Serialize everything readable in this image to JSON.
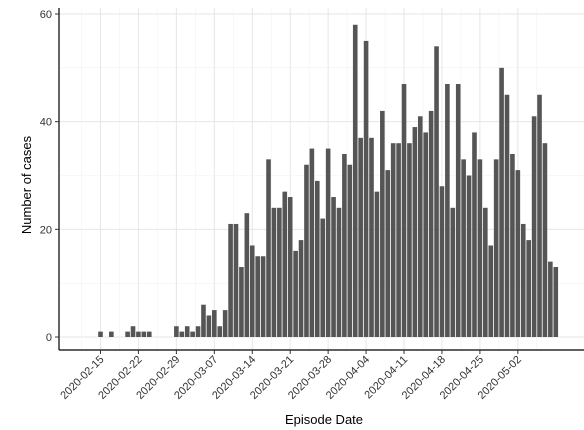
{
  "chart_data": {
    "type": "bar",
    "xlabel": "Episode Date",
    "ylabel": "Number of cases",
    "ylim": [
      0,
      60
    ],
    "y_ticks": [
      0,
      20,
      40,
      60
    ],
    "x_start_date": "2020-02-15",
    "x_tick_labels": [
      "2020-02-15",
      "2020-02-22",
      "2020-02-29",
      "2020-03-07",
      "2020-03-14",
      "2020-03-21",
      "2020-03-28",
      "2020-04-04",
      "2020-04-11",
      "2020-04-18",
      "2020-04-25",
      "2020-05-02"
    ],
    "grid": true,
    "bar_color": "#555555",
    "series": [
      {
        "values": [
          1,
          0,
          1,
          0,
          0,
          1,
          2,
          1,
          1,
          1,
          0,
          0,
          0,
          0,
          2,
          1,
          2,
          1,
          2,
          6,
          4,
          5,
          2,
          5,
          21,
          21,
          13,
          23,
          17,
          15,
          15,
          33,
          24,
          24,
          27,
          26,
          16,
          18,
          32,
          35,
          29,
          22,
          35,
          26,
          24,
          34,
          32,
          58,
          37,
          55,
          37,
          27,
          42,
          31,
          36,
          36,
          47,
          36,
          39,
          41,
          38,
          42,
          54,
          28,
          47,
          24,
          47,
          33,
          30,
          38,
          33,
          24,
          17,
          33,
          50,
          45,
          34,
          31,
          21,
          18,
          41,
          45,
          36,
          14,
          13
        ]
      }
    ]
  }
}
